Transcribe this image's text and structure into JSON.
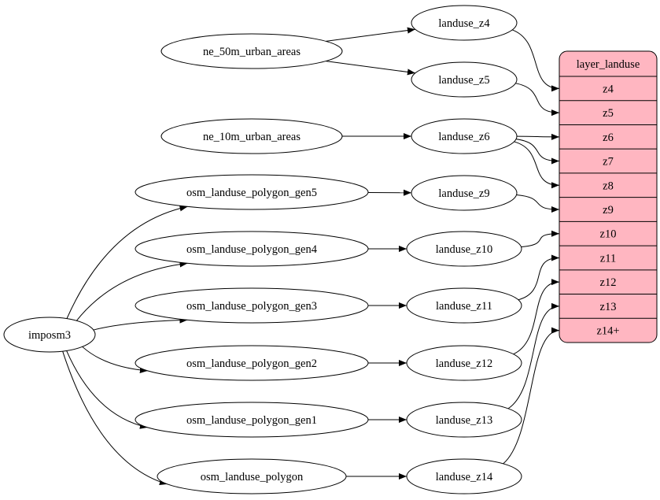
{
  "diagram": {
    "nodes": [
      {
        "id": "ne_50m_urban_areas",
        "label": "ne_50m_urban_areas",
        "shape": "ellipse"
      },
      {
        "id": "ne_10m_urban_areas",
        "label": "ne_10m_urban_areas",
        "shape": "ellipse"
      },
      {
        "id": "osm_landuse_polygon_gen5",
        "label": "osm_landuse_polygon_gen5",
        "shape": "ellipse"
      },
      {
        "id": "osm_landuse_polygon_gen4",
        "label": "osm_landuse_polygon_gen4",
        "shape": "ellipse"
      },
      {
        "id": "osm_landuse_polygon_gen3",
        "label": "osm_landuse_polygon_gen3",
        "shape": "ellipse"
      },
      {
        "id": "osm_landuse_polygon_gen2",
        "label": "osm_landuse_polygon_gen2",
        "shape": "ellipse"
      },
      {
        "id": "osm_landuse_polygon_gen1",
        "label": "osm_landuse_polygon_gen1",
        "shape": "ellipse"
      },
      {
        "id": "osm_landuse_polygon",
        "label": "osm_landuse_polygon",
        "shape": "ellipse"
      },
      {
        "id": "imposm3",
        "label": "imposm3",
        "shape": "ellipse"
      },
      {
        "id": "landuse_z4",
        "label": "landuse_z4",
        "shape": "ellipse"
      },
      {
        "id": "landuse_z5",
        "label": "landuse_z5",
        "shape": "ellipse"
      },
      {
        "id": "landuse_z6",
        "label": "landuse_z6",
        "shape": "ellipse"
      },
      {
        "id": "landuse_z9",
        "label": "landuse_z9",
        "shape": "ellipse"
      },
      {
        "id": "landuse_z10",
        "label": "landuse_z10",
        "shape": "ellipse"
      },
      {
        "id": "landuse_z11",
        "label": "landuse_z11",
        "shape": "ellipse"
      },
      {
        "id": "landuse_z12",
        "label": "landuse_z12",
        "shape": "ellipse"
      },
      {
        "id": "landuse_z13",
        "label": "landuse_z13",
        "shape": "ellipse"
      },
      {
        "id": "landuse_z14",
        "label": "landuse_z14",
        "shape": "ellipse"
      }
    ],
    "record": {
      "id": "layer_landuse",
      "title": "layer_landuse",
      "fill": "#ffb6c1",
      "ports": [
        "z4",
        "z5",
        "z6",
        "z7",
        "z8",
        "z9",
        "z10",
        "z11",
        "z12",
        "z13",
        "z14+"
      ]
    },
    "edges": [
      {
        "from": "ne_50m_urban_areas",
        "to": "landuse_z4"
      },
      {
        "from": "ne_50m_urban_areas",
        "to": "landuse_z5"
      },
      {
        "from": "ne_10m_urban_areas",
        "to": "landuse_z6"
      },
      {
        "from": "osm_landuse_polygon_gen5",
        "to": "landuse_z9"
      },
      {
        "from": "osm_landuse_polygon_gen4",
        "to": "landuse_z10"
      },
      {
        "from": "osm_landuse_polygon_gen3",
        "to": "landuse_z11"
      },
      {
        "from": "osm_landuse_polygon_gen2",
        "to": "landuse_z12"
      },
      {
        "from": "osm_landuse_polygon_gen1",
        "to": "landuse_z13"
      },
      {
        "from": "osm_landuse_polygon",
        "to": "landuse_z14"
      },
      {
        "from": "imposm3",
        "to": "osm_landuse_polygon_gen5"
      },
      {
        "from": "imposm3",
        "to": "osm_landuse_polygon_gen4"
      },
      {
        "from": "imposm3",
        "to": "osm_landuse_polygon_gen3"
      },
      {
        "from": "imposm3",
        "to": "osm_landuse_polygon_gen2"
      },
      {
        "from": "imposm3",
        "to": "osm_landuse_polygon_gen1"
      },
      {
        "from": "imposm3",
        "to": "osm_landuse_polygon"
      },
      {
        "from": "landuse_z4",
        "to": "layer_landuse:z4"
      },
      {
        "from": "landuse_z5",
        "to": "layer_landuse:z5"
      },
      {
        "from": "landuse_z6",
        "to": "layer_landuse:z6"
      },
      {
        "from": "landuse_z6",
        "to": "layer_landuse:z7"
      },
      {
        "from": "landuse_z6",
        "to": "layer_landuse:z8"
      },
      {
        "from": "landuse_z9",
        "to": "layer_landuse:z9"
      },
      {
        "from": "landuse_z10",
        "to": "layer_landuse:z10"
      },
      {
        "from": "landuse_z11",
        "to": "layer_landuse:z11"
      },
      {
        "from": "landuse_z12",
        "to": "layer_landuse:z12"
      },
      {
        "from": "landuse_z13",
        "to": "layer_landuse:z13"
      },
      {
        "from": "landuse_z14",
        "to": "layer_landuse:z14+"
      }
    ]
  }
}
